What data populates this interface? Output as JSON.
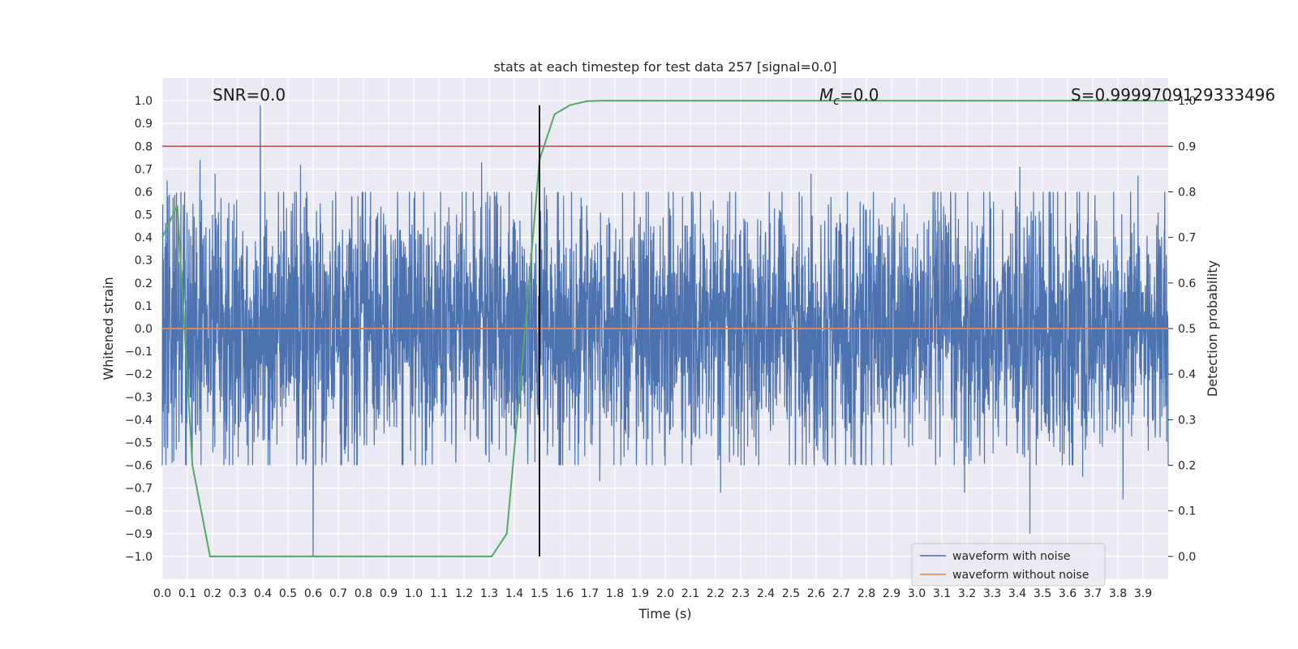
{
  "chart_data": {
    "type": "line",
    "title": "stats at each timestep for test data 257 [signal=0.0]",
    "xlabel": "Time (s)",
    "ylabel": "Whitened strain",
    "y2label": "Detection probability",
    "xlim": [
      0.0,
      4.0
    ],
    "ylim": [
      -1.1,
      1.1
    ],
    "y2lim": [
      -0.05,
      1.05
    ],
    "xticks": [
      "0.0",
      "0.1",
      "0.2",
      "0.3",
      "0.4",
      "0.5",
      "0.6",
      "0.7",
      "0.8",
      "0.9",
      "1.0",
      "1.1",
      "1.2",
      "1.3",
      "1.4",
      "1.5",
      "1.6",
      "1.7",
      "1.8",
      "1.9",
      "2.0",
      "2.1",
      "2.2",
      "2.3",
      "2.4",
      "2.5",
      "2.6",
      "2.7",
      "2.8",
      "2.9",
      "3.0",
      "3.1",
      "3.2",
      "3.3",
      "3.4",
      "3.5",
      "3.6",
      "3.7",
      "3.8",
      "3.9"
    ],
    "yticks": [
      "1.0",
      "0.9",
      "0.8",
      "0.7",
      "0.6",
      "0.5",
      "0.4",
      "0.3",
      "0.2",
      "0.1",
      "0.0",
      "−0.1",
      "−0.2",
      "−0.3",
      "−0.4",
      "−0.5",
      "−0.6",
      "−0.7",
      "−0.8",
      "−0.9",
      "−1.0"
    ],
    "y2ticks": [
      "1.0",
      "0.9",
      "0.8",
      "0.7",
      "0.6",
      "0.5",
      "0.4",
      "0.3",
      "0.2",
      "0.1",
      "0.0"
    ],
    "grid": true,
    "legend_position": "bottom-right",
    "annotations": {
      "snr": "SNR=0.0",
      "mc_symbol": "M",
      "mc_sub": "c",
      "mc_value": "=0.0",
      "s_value": "S=0.9999709129333496"
    },
    "series": [
      {
        "name": "waveform with noise",
        "color": "#4c72b0",
        "kind": "noise",
        "x_range": [
          0.0,
          4.0
        ],
        "typical_amplitude": 0.28,
        "spikes": [
          {
            "x": 0.02,
            "y": 0.65
          },
          {
            "x": 0.15,
            "y": 0.74
          },
          {
            "x": 0.21,
            "y": 0.68
          },
          {
            "x": 0.39,
            "y": 0.98
          },
          {
            "x": 0.55,
            "y": 0.72
          },
          {
            "x": 0.6,
            "y": -1.0
          },
          {
            "x": 1.27,
            "y": 0.73
          },
          {
            "x": 1.52,
            "y": 0.62
          },
          {
            "x": 1.74,
            "y": -0.67
          },
          {
            "x": 2.22,
            "y": -0.72
          },
          {
            "x": 2.58,
            "y": 0.68
          },
          {
            "x": 3.19,
            "y": -0.72
          },
          {
            "x": 3.41,
            "y": 0.71
          },
          {
            "x": 3.45,
            "y": -0.9
          },
          {
            "x": 3.66,
            "y": -0.65
          },
          {
            "x": 3.82,
            "y": -0.75
          },
          {
            "x": 3.88,
            "y": 0.67
          }
        ]
      },
      {
        "name": "waveform without noise",
        "color": "#dd8452",
        "x": [
          0.0,
          4.0
        ],
        "y": [
          0.0,
          0.0
        ]
      },
      {
        "name": "",
        "color": "#55a868",
        "axis": "y2",
        "x": [
          0.0,
          0.06,
          0.12,
          0.19,
          0.25,
          0.31,
          0.37,
          0.44,
          0.5,
          0.56,
          0.62,
          0.69,
          0.75,
          0.81,
          0.87,
          0.94,
          1.0,
          1.06,
          1.12,
          1.19,
          1.25,
          1.31,
          1.37,
          1.44,
          1.5,
          1.56,
          1.62,
          1.69,
          1.75,
          1.81,
          1.87,
          3.99
        ],
        "y": [
          0.7,
          0.77,
          0.2,
          0.0,
          0.0,
          0.0,
          0.0,
          0.0,
          0.0,
          0.0,
          0.0,
          0.0,
          0.0,
          0.0,
          0.0,
          0.0,
          0.0,
          0.0,
          0.0,
          0.0,
          0.0,
          0.0,
          0.05,
          0.48,
          0.87,
          0.97,
          0.99,
          0.999,
          1.0,
          1.0,
          1.0,
          1.0
        ]
      }
    ],
    "hlines": [
      {
        "y2": 0.9,
        "color": "#c44e52"
      },
      {
        "y": 0.0,
        "color": "#dd8452"
      }
    ],
    "vlines": [
      {
        "x": 1.5,
        "y_from": -1.0,
        "y_to": 0.98,
        "color": "#000000"
      }
    ]
  }
}
